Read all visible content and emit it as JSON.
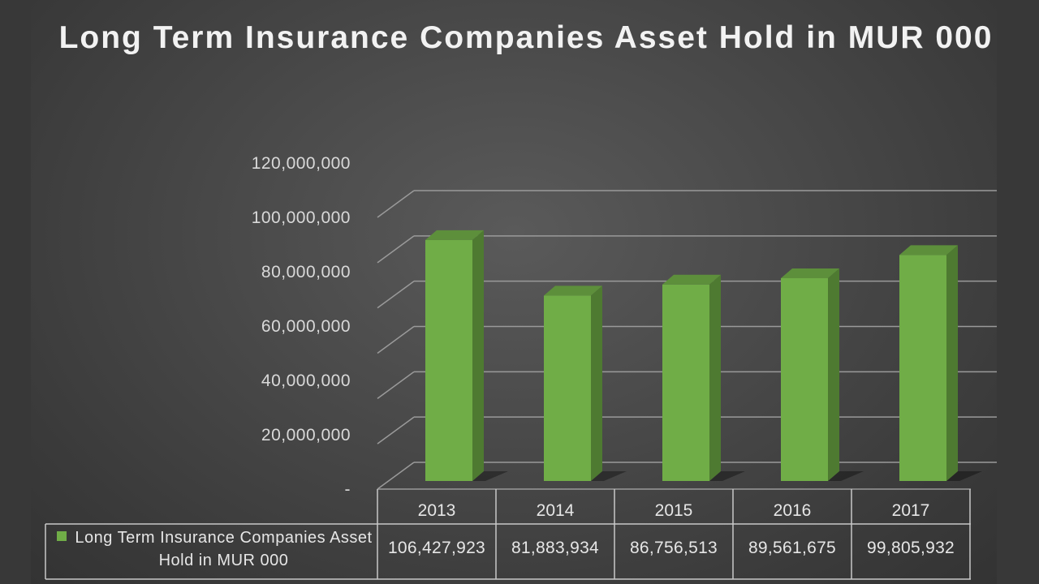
{
  "chart_data": {
    "type": "bar",
    "title": "Long Term Insurance Companies Asset Hold in MUR 000",
    "categories": [
      "2013",
      "2014",
      "2015",
      "2016",
      "2017"
    ],
    "series": [
      {
        "name": "Long Term Insurance Companies Asset Hold in MUR 000",
        "values": [
          106427923,
          81883934,
          86756513,
          89561675,
          99805932
        ],
        "value_labels": [
          "106,427,923",
          "81,883,934",
          "86,756,513",
          "89,561,675",
          "99,805,932"
        ],
        "color": "#70ad47"
      }
    ],
    "ylim": [
      0,
      120000000
    ],
    "yticks": [
      "-",
      "20,000,000",
      "40,000,000",
      "60,000,000",
      "80,000,000",
      "100,000,000",
      "120,000,000"
    ],
    "grid": true,
    "legend": "data-table",
    "style": "3d-column"
  },
  "colors": {
    "bar_front": "#70ad47",
    "bar_side": "#4e7a31",
    "bar_top": "#5d8f3b",
    "grid": "#9a9a9a",
    "text": "#e6e6e6"
  }
}
